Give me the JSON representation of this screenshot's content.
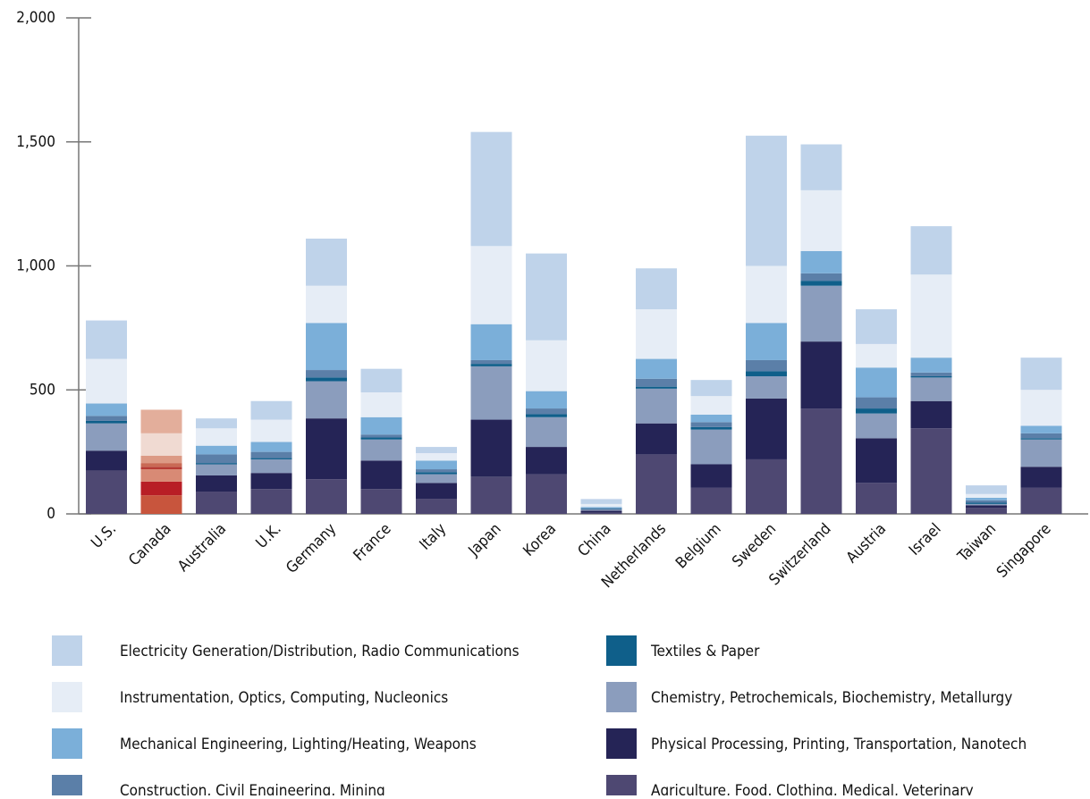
{
  "chart_data": {
    "type": "stacked_bar",
    "categories": [
      "U.S.",
      "Canada",
      "Australia",
      "U.K.",
      "Germany",
      "France",
      "Italy",
      "Japan",
      "Korea",
      "China",
      "Netherlands",
      "Belgium",
      "Sweden",
      "Switzerland",
      "Austria",
      "Israel",
      "Taiwan",
      "Singapore"
    ],
    "highlight": "Canada",
    "series": [
      {
        "name": "Agriculture, Food, Clothing, Medical, Veterinary",
        "color": "#4e4872",
        "highlight_color": "#c8553d",
        "values": [
          175,
          75,
          90,
          100,
          140,
          100,
          60,
          150,
          160,
          5,
          240,
          105,
          220,
          425,
          125,
          345,
          25,
          105
        ]
      },
      {
        "name": "Physical Processing, Printing, Transportation, Nanotech",
        "color": "#252456",
        "highlight_color": "#b81e25",
        "values": [
          80,
          55,
          65,
          65,
          245,
          115,
          65,
          230,
          110,
          8,
          125,
          95,
          245,
          270,
          180,
          110,
          10,
          85
        ]
      },
      {
        "name": "Chemistry, Petrochemicals, Biochemistry, Metallurgy",
        "color": "#8b9dbd",
        "highlight_color": "#d88a75",
        "values": [
          110,
          50,
          45,
          55,
          150,
          85,
          35,
          215,
          120,
          5,
          140,
          140,
          90,
          225,
          100,
          95,
          5,
          110
        ]
      },
      {
        "name": "Textiles & Paper",
        "color": "#0f5f8a",
        "highlight_color": "#b63b34",
        "values": [
          10,
          10,
          5,
          5,
          15,
          8,
          8,
          10,
          12,
          2,
          8,
          10,
          20,
          20,
          20,
          5,
          5,
          5
        ]
      },
      {
        "name": "Construction, Civil Engineering, Mining",
        "color": "#5b7fa8",
        "highlight_color": "#c96a55",
        "values": [
          20,
          15,
          35,
          25,
          30,
          12,
          12,
          15,
          23,
          3,
          32,
          20,
          45,
          30,
          45,
          15,
          10,
          20
        ]
      },
      {
        "name": "Mechanical Engineering, Lighting/Heating, Weapons",
        "color": "#7bafd9",
        "highlight_color": "#dc9a85",
        "values": [
          50,
          30,
          35,
          40,
          190,
          70,
          35,
          145,
          70,
          5,
          80,
          30,
          150,
          90,
          120,
          60,
          10,
          30
        ]
      },
      {
        "name": "Instrumentation, Optics, Computing, Nucleonics",
        "color": "#e6edf6",
        "highlight_color": "#f0dad2",
        "values": [
          180,
          90,
          70,
          90,
          150,
          100,
          30,
          315,
          205,
          12,
          200,
          75,
          230,
          245,
          95,
          335,
          15,
          145
        ]
      },
      {
        "name": "Electricity Generation/Distribution, Radio Communications",
        "color": "#bfd3ea",
        "highlight_color": "#e3ae9b",
        "values": [
          155,
          95,
          40,
          75,
          190,
          95,
          25,
          460,
          350,
          20,
          165,
          65,
          525,
          185,
          140,
          195,
          35,
          130
        ]
      }
    ],
    "ylim": [
      0,
      2000
    ],
    "yticks": [
      0,
      500,
      {
        "value": 1000,
        "label": "1,000"
      },
      {
        "value": 1500,
        "label": "1,500"
      },
      {
        "value": 2000,
        "label": "2,000"
      }
    ]
  }
}
